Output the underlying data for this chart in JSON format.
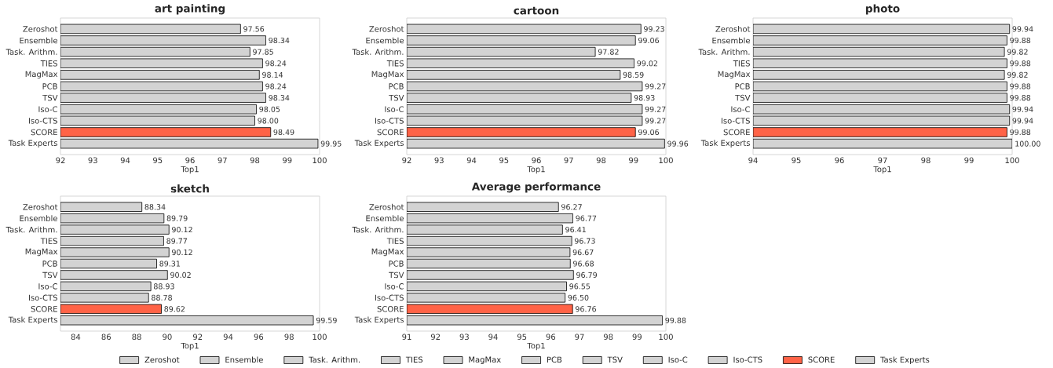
{
  "chart_data": [
    {
      "type": "bar",
      "orientation": "horizontal",
      "title": "art painting",
      "xlabel": "Top1",
      "categories": [
        "Zeroshot",
        "Ensemble",
        "Task. Arithm.",
        "TIES",
        "MagMax",
        "PCB",
        "TSV",
        "Iso-C",
        "Iso-CTS",
        "SCORE",
        "Task Experts"
      ],
      "values": [
        97.56,
        98.34,
        97.85,
        98.24,
        98.14,
        98.24,
        98.34,
        98.05,
        98.0,
        98.49,
        99.95
      ],
      "value_labels": [
        "97.56",
        "98.34",
        "97.85",
        "98.24",
        "98.14",
        "98.24",
        "98.34",
        "98.05",
        "98.00",
        "98.49",
        "99.95"
      ],
      "colors": [
        "#d3d3d3",
        "#d3d3d3",
        "#d3d3d3",
        "#d3d3d3",
        "#d3d3d3",
        "#d3d3d3",
        "#d3d3d3",
        "#d3d3d3",
        "#d3d3d3",
        "#ff6347",
        "#d3d3d3"
      ],
      "xlim": [
        92,
        100
      ],
      "xticks": [
        92,
        93,
        94,
        95,
        96,
        97,
        98,
        99,
        100
      ]
    },
    {
      "type": "bar",
      "orientation": "horizontal",
      "title": "cartoon",
      "xlabel": "Top1",
      "categories": [
        "Zeroshot",
        "Ensemble",
        "Task. Arithm.",
        "TIES",
        "MagMax",
        "PCB",
        "TSV",
        "Iso-C",
        "Iso-CTS",
        "SCORE",
        "Task Experts"
      ],
      "values": [
        99.23,
        99.06,
        97.82,
        99.02,
        98.59,
        99.27,
        98.93,
        99.27,
        99.27,
        99.06,
        99.96
      ],
      "value_labels": [
        "99.23",
        "99.06",
        "97.82",
        "99.02",
        "98.59",
        "99.27",
        "98.93",
        "99.27",
        "99.27",
        "99.06",
        "99.96"
      ],
      "colors": [
        "#d3d3d3",
        "#d3d3d3",
        "#d3d3d3",
        "#d3d3d3",
        "#d3d3d3",
        "#d3d3d3",
        "#d3d3d3",
        "#d3d3d3",
        "#d3d3d3",
        "#ff6347",
        "#d3d3d3"
      ],
      "xlim": [
        92,
        100
      ],
      "xticks": [
        92,
        93,
        94,
        95,
        96,
        97,
        98,
        99,
        100
      ]
    },
    {
      "type": "bar",
      "orientation": "horizontal",
      "title": "photo",
      "xlabel": "Top1",
      "categories": [
        "Zeroshot",
        "Ensemble",
        "Task. Arithm.",
        "TIES",
        "MagMax",
        "PCB",
        "TSV",
        "Iso-C",
        "Iso-CTS",
        "SCORE",
        "Task Experts"
      ],
      "values": [
        99.94,
        99.88,
        99.82,
        99.88,
        99.82,
        99.88,
        99.88,
        99.94,
        99.94,
        99.88,
        100.0
      ],
      "value_labels": [
        "99.94",
        "99.88",
        "99.82",
        "99.88",
        "99.82",
        "99.88",
        "99.88",
        "99.94",
        "99.94",
        "99.88",
        "100.00"
      ],
      "colors": [
        "#d3d3d3",
        "#d3d3d3",
        "#d3d3d3",
        "#d3d3d3",
        "#d3d3d3",
        "#d3d3d3",
        "#d3d3d3",
        "#d3d3d3",
        "#d3d3d3",
        "#ff6347",
        "#d3d3d3"
      ],
      "xlim": [
        94,
        100
      ],
      "xticks": [
        94,
        95,
        96,
        97,
        98,
        99,
        100
      ]
    },
    {
      "type": "bar",
      "orientation": "horizontal",
      "title": "sketch",
      "xlabel": "Top1",
      "categories": [
        "Zeroshot",
        "Ensemble",
        "Task. Arithm.",
        "TIES",
        "MagMax",
        "PCB",
        "TSV",
        "Iso-C",
        "Iso-CTS",
        "SCORE",
        "Task Experts"
      ],
      "values": [
        88.34,
        89.79,
        90.12,
        89.77,
        90.12,
        89.31,
        90.02,
        88.93,
        88.78,
        89.62,
        99.59
      ],
      "value_labels": [
        "88.34",
        "89.79",
        "90.12",
        "89.77",
        "90.12",
        "89.31",
        "90.02",
        "88.93",
        "88.78",
        "89.62",
        "99.59"
      ],
      "colors": [
        "#d3d3d3",
        "#d3d3d3",
        "#d3d3d3",
        "#d3d3d3",
        "#d3d3d3",
        "#d3d3d3",
        "#d3d3d3",
        "#d3d3d3",
        "#d3d3d3",
        "#ff6347",
        "#d3d3d3"
      ],
      "xlim": [
        83,
        100
      ],
      "xticks": [
        84,
        86,
        88,
        90,
        92,
        94,
        96,
        98,
        100
      ]
    },
    {
      "type": "bar",
      "orientation": "horizontal",
      "title": "Average performance",
      "xlabel": "Top1",
      "categories": [
        "Zeroshot",
        "Ensemble",
        "Task. Arithm.",
        "TIES",
        "MagMax",
        "PCB",
        "TSV",
        "Iso-C",
        "Iso-CTS",
        "SCORE",
        "Task Experts"
      ],
      "series": [
        {
          "name": "Zeroshot",
          "color": "#d3d3d3",
          "values": [
            96.27,
            null,
            null,
            null,
            null,
            null,
            null,
            null,
            null,
            null,
            null
          ],
          "value_labels": [
            "96.27",
            null,
            null,
            null,
            null,
            null,
            null,
            null,
            null,
            null,
            null
          ]
        },
        {
          "name": "Ensemble",
          "color": "#d3d3d3",
          "values": [
            null,
            96.77,
            null,
            null,
            null,
            null,
            null,
            null,
            null,
            null,
            null
          ],
          "value_labels": [
            null,
            "96.77",
            null,
            null,
            null,
            null,
            null,
            null,
            null,
            null,
            null
          ]
        },
        {
          "name": "Task. Arithm.",
          "color": "#d3d3d3",
          "values": [
            null,
            null,
            96.41,
            null,
            null,
            null,
            null,
            null,
            null,
            null,
            null
          ],
          "value_labels": [
            null,
            null,
            "96.41",
            null,
            null,
            null,
            null,
            null,
            null,
            null,
            null
          ]
        },
        {
          "name": "TIES",
          "color": "#d3d3d3",
          "values": [
            null,
            null,
            null,
            96.73,
            null,
            null,
            null,
            null,
            null,
            null,
            null
          ],
          "value_labels": [
            null,
            null,
            null,
            "96.73",
            null,
            null,
            null,
            null,
            null,
            null,
            null
          ]
        },
        {
          "name": "MagMax",
          "color": "#d3d3d3",
          "values": [
            null,
            null,
            null,
            null,
            96.67,
            null,
            null,
            null,
            null,
            null,
            null
          ],
          "value_labels": [
            null,
            null,
            null,
            null,
            "96.67",
            null,
            null,
            null,
            null,
            null,
            null
          ]
        },
        {
          "name": "PCB",
          "color": "#d3d3d3",
          "values": [
            null,
            null,
            null,
            null,
            null,
            96.68,
            null,
            null,
            null,
            null,
            null
          ],
          "value_labels": [
            null,
            null,
            null,
            null,
            null,
            "96.68",
            null,
            null,
            null,
            null,
            null
          ]
        },
        {
          "name": "TSV",
          "color": "#d3d3d3",
          "values": [
            null,
            null,
            null,
            null,
            null,
            null,
            96.79,
            null,
            null,
            null,
            null
          ],
          "value_labels": [
            null,
            null,
            null,
            null,
            null,
            null,
            "96.79",
            null,
            null,
            null,
            null
          ]
        },
        {
          "name": "Iso-C",
          "color": "#d3d3d3",
          "values": [
            null,
            null,
            null,
            null,
            null,
            null,
            null,
            96.55,
            null,
            null,
            null
          ],
          "value_labels": [
            null,
            null,
            null,
            null,
            null,
            null,
            null,
            "96.55",
            null,
            null,
            null
          ]
        },
        {
          "name": "Iso-CTS",
          "color": "#d3d3d3",
          "values": [
            null,
            null,
            null,
            null,
            null,
            null,
            null,
            null,
            96.5,
            null,
            null
          ],
          "value_labels": [
            null,
            null,
            null,
            null,
            null,
            null,
            null,
            null,
            "96.50",
            null,
            null
          ]
        },
        {
          "name": "SCORE",
          "color": "#ff6347",
          "values": [
            null,
            null,
            null,
            null,
            null,
            null,
            null,
            null,
            null,
            96.76,
            null
          ],
          "value_labels": [
            null,
            null,
            null,
            null,
            null,
            null,
            null,
            null,
            null,
            "96.76",
            null
          ]
        },
        {
          "name": "Task Experts",
          "color": "#d3d3d3",
          "values": [
            null,
            null,
            null,
            null,
            null,
            null,
            null,
            null,
            null,
            null,
            99.88
          ],
          "value_labels": [
            null,
            null,
            null,
            null,
            null,
            null,
            null,
            null,
            null,
            null,
            "99.88"
          ]
        }
      ],
      "xlim": [
        91,
        100
      ],
      "xticks": [
        91,
        92,
        93,
        94,
        95,
        96,
        97,
        98,
        99,
        100
      ],
      "legend": "bottom"
    }
  ]
}
